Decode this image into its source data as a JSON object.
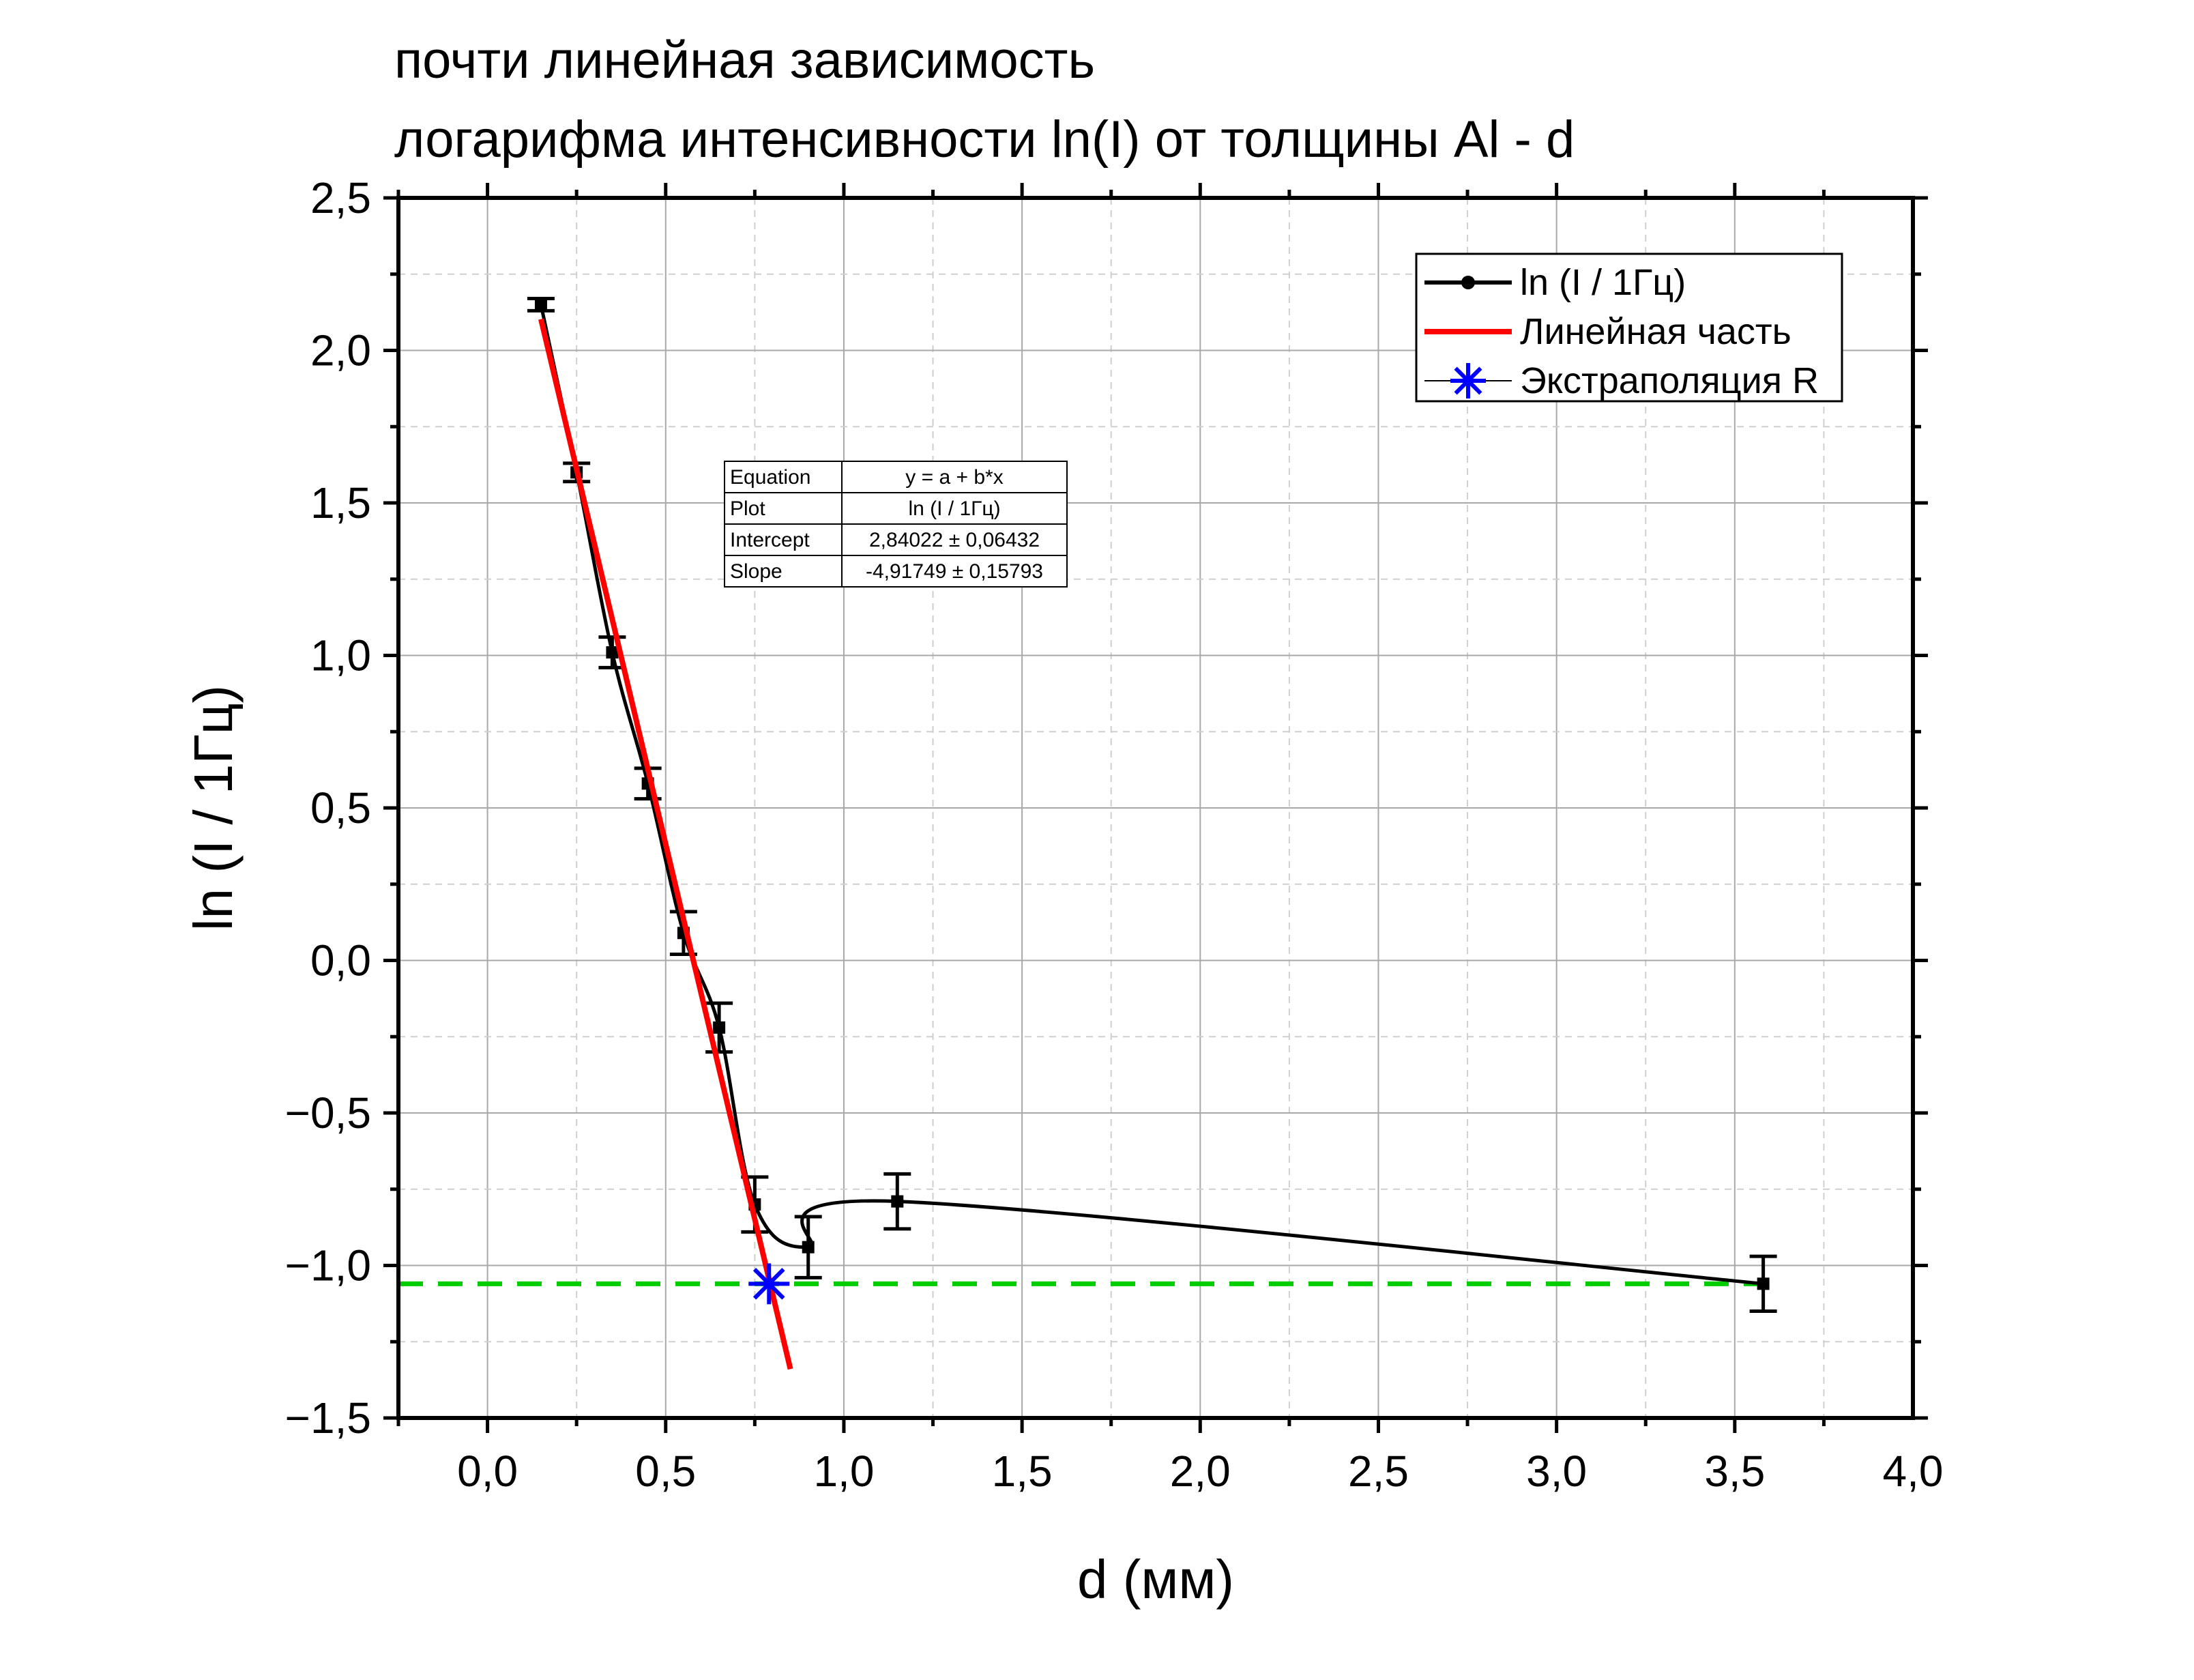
{
  "title_lines": [
    "почти линейная зависимость",
    "логарифма интенсивности ln(I) от толщины Al - d"
  ],
  "chart_data": {
    "type": "scatter",
    "xlabel": "d (мм)",
    "ylabel": "ln (I / 1Гц)",
    "xlim": [
      -0.25,
      4.0
    ],
    "ylim": [
      -1.5,
      2.5
    ],
    "x_ticks": [
      "0,0",
      "0,5",
      "1,0",
      "1,5",
      "2,0",
      "2,5",
      "3,0",
      "3,5",
      "4,0"
    ],
    "y_ticks": [
      "−1,5",
      "−1,0",
      "−0,5",
      "0,0",
      "0,5",
      "1,0",
      "1,5",
      "2,0",
      "2,5"
    ],
    "grid": true,
    "legend_position": "top-right",
    "series": [
      {
        "name": "ln (I / 1Гц)",
        "color": "#000000",
        "style": "points-with-errorbars-and-smooth-line",
        "x": [
          0.15,
          0.25,
          0.35,
          0.45,
          0.55,
          0.65,
          0.75,
          0.9,
          1.15,
          3.58
        ],
        "y": [
          2.15,
          1.6,
          1.01,
          0.58,
          0.09,
          -0.22,
          -0.8,
          -0.94,
          -0.79,
          -1.06
        ],
        "yerr": [
          0.02,
          0.03,
          0.05,
          0.05,
          0.07,
          0.08,
          0.09,
          0.1,
          0.09,
          0.09
        ]
      },
      {
        "name": "Линейная часть",
        "color": "#ff0000",
        "style": "line",
        "intercept": 2.84022,
        "slope": -4.91749,
        "x_range": [
          0.15,
          0.85
        ]
      },
      {
        "name": "Экстраполяция R",
        "color": "#0000ff",
        "style": "star-marker",
        "x": [
          0.79
        ],
        "y": [
          -1.06
        ]
      }
    ],
    "reference_line": {
      "y": -1.06,
      "color": "#00cc00",
      "style": "dashed"
    },
    "fit_table": {
      "rows": [
        [
          "Equation",
          "y = a + b*x"
        ],
        [
          "Plot",
          "ln (I / 1Гц)"
        ],
        [
          "Intercept",
          "2,84022 ± 0,06432"
        ],
        [
          "Slope",
          "-4,91749 ± 0,15793"
        ]
      ]
    }
  }
}
